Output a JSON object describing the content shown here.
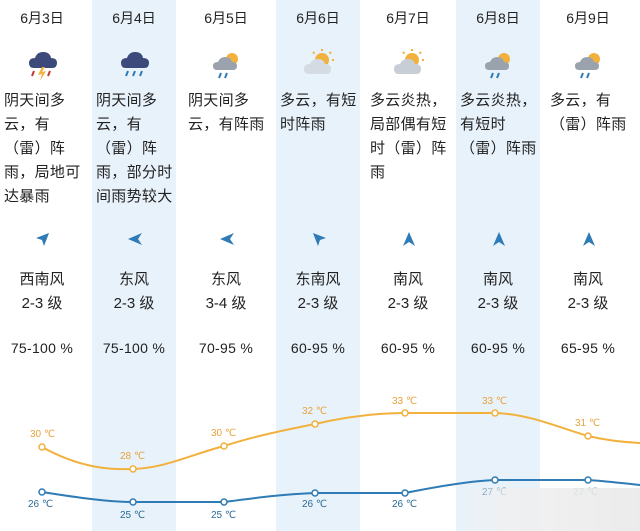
{
  "days": [
    {
      "date": "6月3日",
      "icon": "thunderstorm-icon",
      "desc": "阴天间多\n云，有\n（雷）阵\n雨，局地可\n达暴雨",
      "wind_dir": "西南风",
      "wind_level": "2-3 级",
      "humidity": "75-100 %",
      "high": "30 ℃",
      "low": "26 ℃"
    },
    {
      "date": "6月4日",
      "icon": "rain-cloud-icon",
      "desc": "阴天间多\n云，有\n（雷）阵\n雨，部分时\n间雨势较大",
      "wind_dir": "东风",
      "wind_level": "2-3 级",
      "humidity": "75-100 %",
      "high": "28 ℃",
      "low": "25 ℃"
    },
    {
      "date": "6月5日",
      "icon": "sun-cloud-rain-icon",
      "desc": "阴天间多\n云，有阵雨",
      "wind_dir": "东风",
      "wind_level": "3-4 级",
      "humidity": "70-95 %",
      "high": "30 ℃",
      "low": "25 ℃"
    },
    {
      "date": "6月6日",
      "icon": "sun-cloud-icon",
      "desc": "多云，有短\n时阵雨",
      "wind_dir": "东南风",
      "wind_level": "2-3 级",
      "humidity": "60-95 %",
      "high": "32 ℃",
      "low": "26 ℃"
    },
    {
      "date": "6月7日",
      "icon": "sun-cloud-icon",
      "desc": "多云炎热，\n局部偶有短\n时（雷）阵\n雨",
      "wind_dir": "南风",
      "wind_level": "2-3 级",
      "humidity": "60-95 %",
      "high": "33 ℃",
      "low": "26 ℃"
    },
    {
      "date": "6月8日",
      "icon": "sun-cloud-rain-icon",
      "desc": "多云炎热，\n有短时\n（雷）阵雨",
      "wind_dir": "南风",
      "wind_level": "2-3 级",
      "humidity": "60-95 %",
      "high": "33 ℃",
      "low": "27 ℃"
    },
    {
      "date": "6月9日",
      "icon": "sun-cloud-rain-icon",
      "desc": "多云，有\n（雷）阵雨",
      "wind_dir": "南风",
      "wind_level": "2-3 级",
      "humidity": "65-95 %",
      "high": "31 ℃",
      "low": "27 ℃"
    }
  ],
  "colors": {
    "high_line": "#f2b13c",
    "low_line": "#2e7bb5",
    "column_tint": "#e8f2fb"
  }
}
